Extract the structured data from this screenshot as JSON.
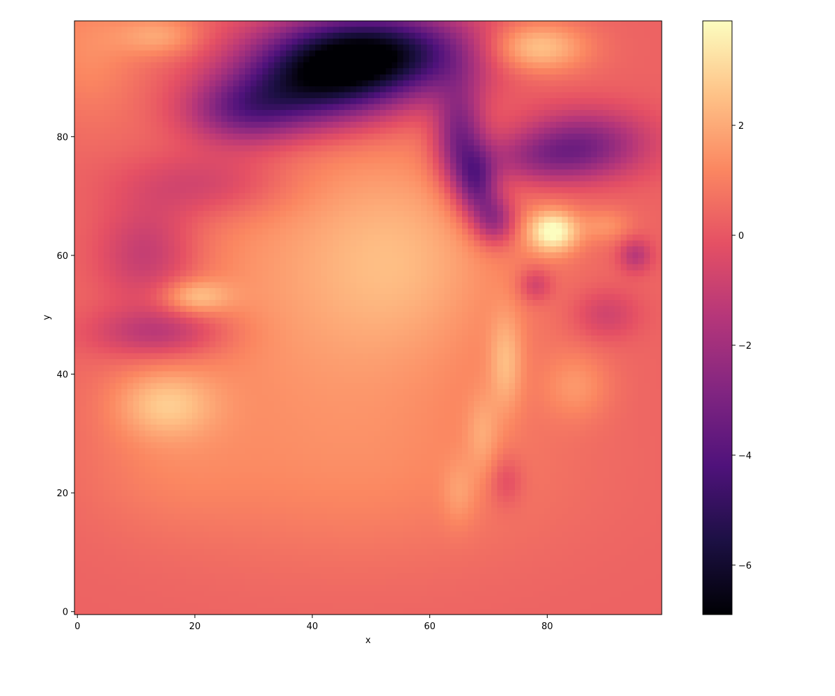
{
  "chart_data": {
    "type": "heatmap",
    "title": "",
    "xlabel": "x",
    "ylabel": "y",
    "grid_shape": [
      100,
      100
    ],
    "xlim": [
      -0.5,
      99.5
    ],
    "ylim": [
      -0.5,
      99.5
    ],
    "origin": "lower",
    "x_ticks": [
      0,
      20,
      40,
      60,
      80
    ],
    "y_ticks": [
      0,
      20,
      40,
      60,
      80
    ],
    "colormap": "magma",
    "colorbar": {
      "vmin": -6.9,
      "vmax": 3.9,
      "ticks": [
        -6,
        -4,
        -2,
        0,
        2
      ],
      "tick_labels": [
        "−6",
        "−4",
        "−2",
        "0",
        "2"
      ]
    },
    "background_level": 0.3,
    "features": [
      {
        "name": "upper-left-rim",
        "x": 2,
        "y": 95,
        "sx": 6,
        "sy": 8,
        "value": 1.0
      },
      {
        "name": "central-bulge",
        "x": 45,
        "y": 55,
        "sx": 22,
        "sy": 22,
        "value": 1.5
      },
      {
        "name": "central-bulge-core",
        "x": 55,
        "y": 60,
        "sx": 10,
        "sy": 10,
        "value": 0.8
      },
      {
        "name": "bottom-bright-band",
        "x": 50,
        "y": 22,
        "sx": 25,
        "sy": 10,
        "value": 0.5
      },
      {
        "name": "top-dark-tongue",
        "x": 50,
        "y": 94,
        "sx": 12,
        "sy": 5,
        "value": -7.0
      },
      {
        "name": "top-dark-left",
        "x": 40,
        "y": 88,
        "sx": 10,
        "sy": 5,
        "value": -4.5
      },
      {
        "name": "top-dark-arc",
        "x": 28,
        "y": 84,
        "sx": 7,
        "sy": 4,
        "value": -3.0
      },
      {
        "name": "diagonal-dark-filament-1",
        "x": 65,
        "y": 80,
        "sx": 3,
        "sy": 6,
        "value": -3.5
      },
      {
        "name": "diagonal-dark-filament-2",
        "x": 68,
        "y": 72,
        "sx": 2.5,
        "sy": 4,
        "value": -3.5
      },
      {
        "name": "diagonal-dark-filament-3",
        "x": 71,
        "y": 66,
        "sx": 2.5,
        "sy": 3,
        "value": -3.0
      },
      {
        "name": "right-dark-lobe",
        "x": 86,
        "y": 79,
        "sx": 8,
        "sy": 4,
        "value": -3.0
      },
      {
        "name": "right-dark-lobe-2",
        "x": 78,
        "y": 76,
        "sx": 8,
        "sy": 3,
        "value": -1.8
      },
      {
        "name": "left-dark-swirl",
        "x": 22,
        "y": 72,
        "sx": 10,
        "sy": 4,
        "value": -1.5
      },
      {
        "name": "left-dark-swirl-2",
        "x": 12,
        "y": 60,
        "sx": 6,
        "sy": 6,
        "value": -1.8
      },
      {
        "name": "left-dark-swirl-3",
        "x": 14,
        "y": 47,
        "sx": 8,
        "sy": 3,
        "value": -2.0
      },
      {
        "name": "left-bright-ring",
        "x": 20,
        "y": 53,
        "sx": 4,
        "sy": 2,
        "value": 1.8
      },
      {
        "name": "left-bright-blob",
        "x": 15,
        "y": 35,
        "sx": 6,
        "sy": 4,
        "value": 1.8
      },
      {
        "name": "bright-spot-right",
        "x": 81,
        "y": 64,
        "sx": 3,
        "sy": 2.5,
        "value": 3.5
      },
      {
        "name": "top-bright-patch",
        "x": 78,
        "y": 95,
        "sx": 6,
        "sy": 3,
        "value": 2.5
      },
      {
        "name": "top-left-bright-patch",
        "x": 14,
        "y": 97,
        "sx": 5,
        "sy": 2.5,
        "value": 1.5
      },
      {
        "name": "bright-filament-1",
        "x": 73,
        "y": 42,
        "sx": 2,
        "sy": 6,
        "value": 1.5
      },
      {
        "name": "bright-filament-2",
        "x": 69,
        "y": 30,
        "sx": 2,
        "sy": 5,
        "value": 1.0
      },
      {
        "name": "bright-filament-3",
        "x": 65,
        "y": 20,
        "sx": 2,
        "sy": 4,
        "value": 0.8
      },
      {
        "name": "right-dark-spot-1",
        "x": 90,
        "y": 50,
        "sx": 4,
        "sy": 3,
        "value": -1.2
      },
      {
        "name": "right-dark-spot-2",
        "x": 95,
        "y": 60,
        "sx": 2,
        "sy": 2,
        "value": -1.8
      },
      {
        "name": "right-dark-spot-3",
        "x": 78,
        "y": 55,
        "sx": 2,
        "sy": 2,
        "value": -1.5
      },
      {
        "name": "right-bright-patch-1",
        "x": 85,
        "y": 38,
        "sx": 4,
        "sy": 4,
        "value": 1.0
      },
      {
        "name": "right-bright-patch-2",
        "x": 90,
        "y": 65,
        "sx": 3,
        "sy": 2,
        "value": 1.0
      },
      {
        "name": "lower-right-dark",
        "x": 73,
        "y": 22,
        "sx": 2,
        "sy": 3,
        "value": -1.0
      },
      {
        "name": "lower-left-warm",
        "x": 15,
        "y": 25,
        "sx": 10,
        "sy": 8,
        "value": 0.5
      }
    ]
  }
}
